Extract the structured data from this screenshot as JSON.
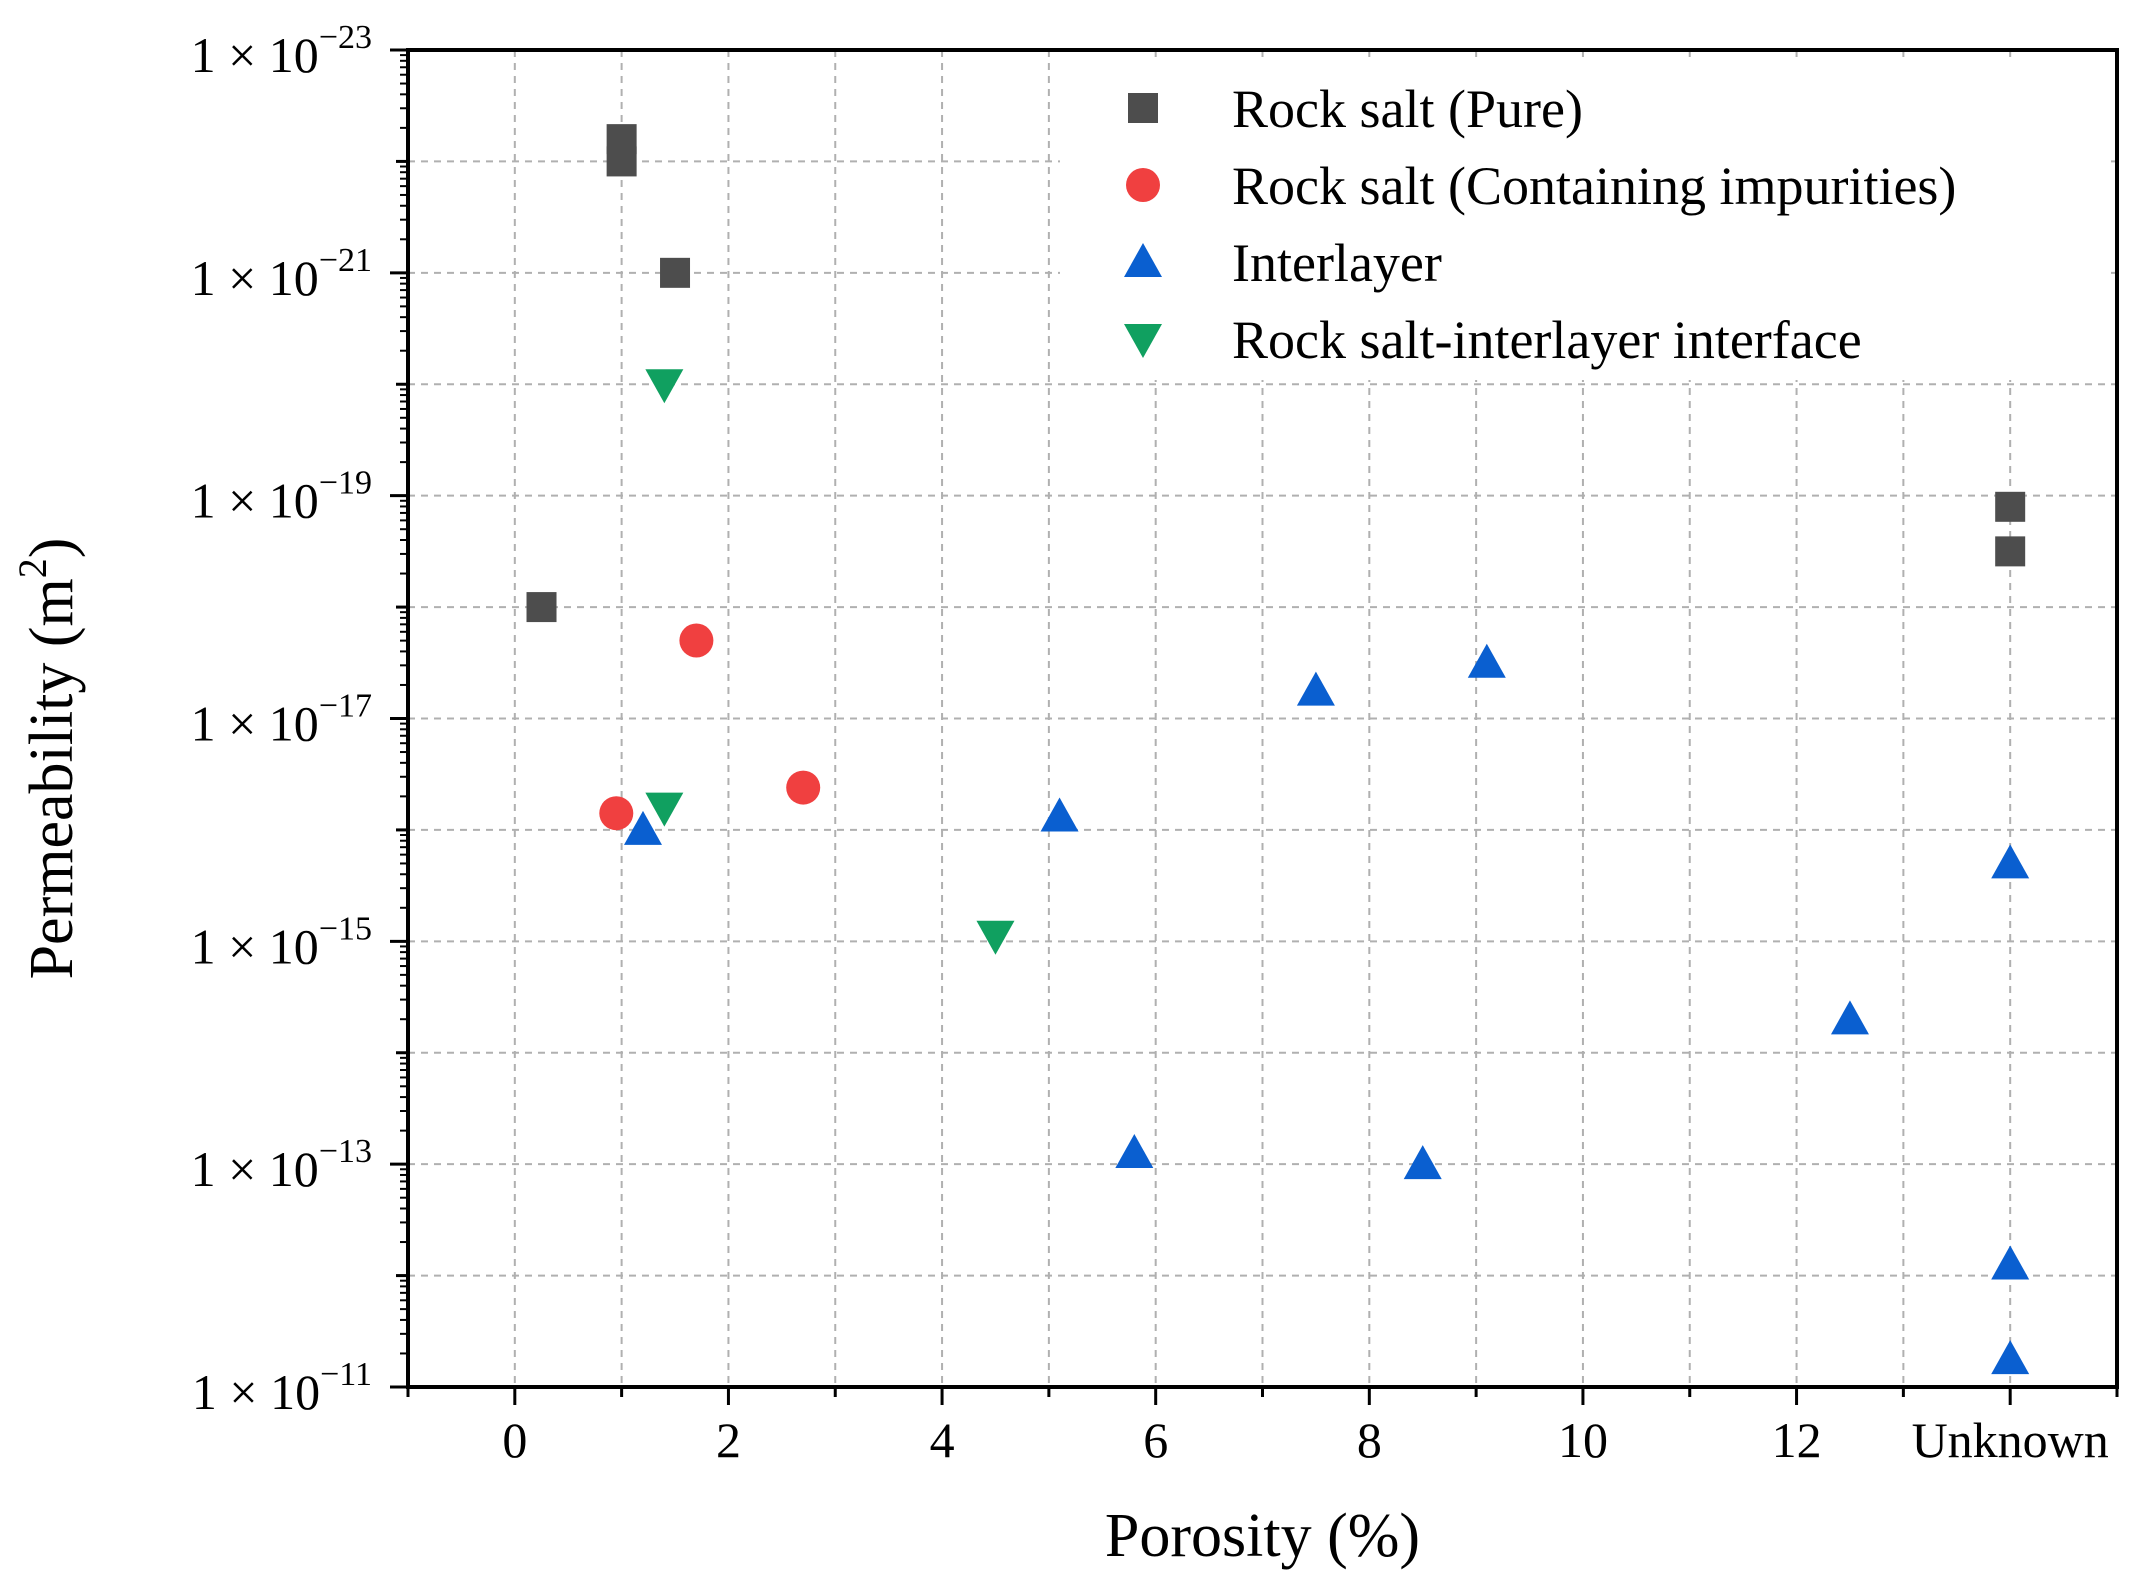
{
  "chart_data": {
    "type": "scatter",
    "title": "",
    "xlabel": "Porosity (%)",
    "ylabel_text": "Permeability (m",
    "ylabel_unit_sup": "2",
    "ylabel_close": ")",
    "xlim": [
      -1,
      15
    ],
    "x_ticks": [
      {
        "value": 0,
        "label": "0"
      },
      {
        "value": 2,
        "label": "2"
      },
      {
        "value": 4,
        "label": "4"
      },
      {
        "value": 6,
        "label": "6"
      },
      {
        "value": 8,
        "label": "8"
      },
      {
        "value": 10,
        "label": "10"
      },
      {
        "value": 12,
        "label": "12"
      },
      {
        "value": 14,
        "label": "Unknown"
      }
    ],
    "y_scale": "log",
    "y_axis_direction": "reversed (1 × 10^-23 at top, 1 × 10^-11 at bottom)",
    "ylim_exponent": [
      -23,
      -11
    ],
    "y_ticks": [
      {
        "exponent": -23,
        "base": "1 × 10",
        "exp": "−23"
      },
      {
        "exponent": -21,
        "base": "1 × 10",
        "exp": "−21"
      },
      {
        "exponent": -19,
        "base": "1 × 10",
        "exp": "−19"
      },
      {
        "exponent": -17,
        "base": "1 × 10",
        "exp": "−17"
      },
      {
        "exponent": -15,
        "base": "1 × 10",
        "exp": "−15"
      },
      {
        "exponent": -13,
        "base": "1 × 10",
        "exp": "−13"
      },
      {
        "exponent": -11,
        "base": "1 × 10",
        "exp": "−11"
      }
    ],
    "grid": true,
    "legend_position": "top-right",
    "series": [
      {
        "name": "Rock salt (Pure)",
        "marker": "square",
        "color": "#4d4d4d",
        "points": [
          {
            "x": 1.0,
            "y_exp": -22.2
          },
          {
            "x": 1.0,
            "y_exp": -22.0
          },
          {
            "x": 1.5,
            "y_exp": -21.0
          },
          {
            "x": 0.25,
            "y_exp": -18.0
          },
          {
            "x": 14,
            "y_exp": -18.9
          },
          {
            "x": 14,
            "y_exp": -18.5
          }
        ]
      },
      {
        "name": "Rock salt (Containing impurities)",
        "marker": "circle",
        "color": "#f04040",
        "points": [
          {
            "x": 1.7,
            "y_exp": -17.7
          },
          {
            "x": 2.7,
            "y_exp": -16.38
          },
          {
            "x": 0.95,
            "y_exp": -16.15
          }
        ]
      },
      {
        "name": "Interlayer",
        "marker": "triangle-up",
        "color": "#0a5fd0",
        "points": [
          {
            "x": 9.1,
            "y_exp": -17.5
          },
          {
            "x": 7.5,
            "y_exp": -17.25
          },
          {
            "x": 5.1,
            "y_exp": -16.12
          },
          {
            "x": 1.2,
            "y_exp": -16.0
          },
          {
            "x": 14,
            "y_exp": -15.7
          },
          {
            "x": 12.5,
            "y_exp": -14.3
          },
          {
            "x": 5.8,
            "y_exp": -13.1
          },
          {
            "x": 8.5,
            "y_exp": -13.0
          },
          {
            "x": 14,
            "y_exp": -12.1
          },
          {
            "x": 14,
            "y_exp": -11.25
          }
        ]
      },
      {
        "name": "Rock salt-interlayer interface",
        "marker": "triangle-down",
        "color": "#10a060",
        "points": [
          {
            "x": 1.4,
            "y_exp": -20.0
          },
          {
            "x": 1.4,
            "y_exp": -16.2
          },
          {
            "x": 4.5,
            "y_exp": -15.05
          }
        ]
      }
    ]
  }
}
